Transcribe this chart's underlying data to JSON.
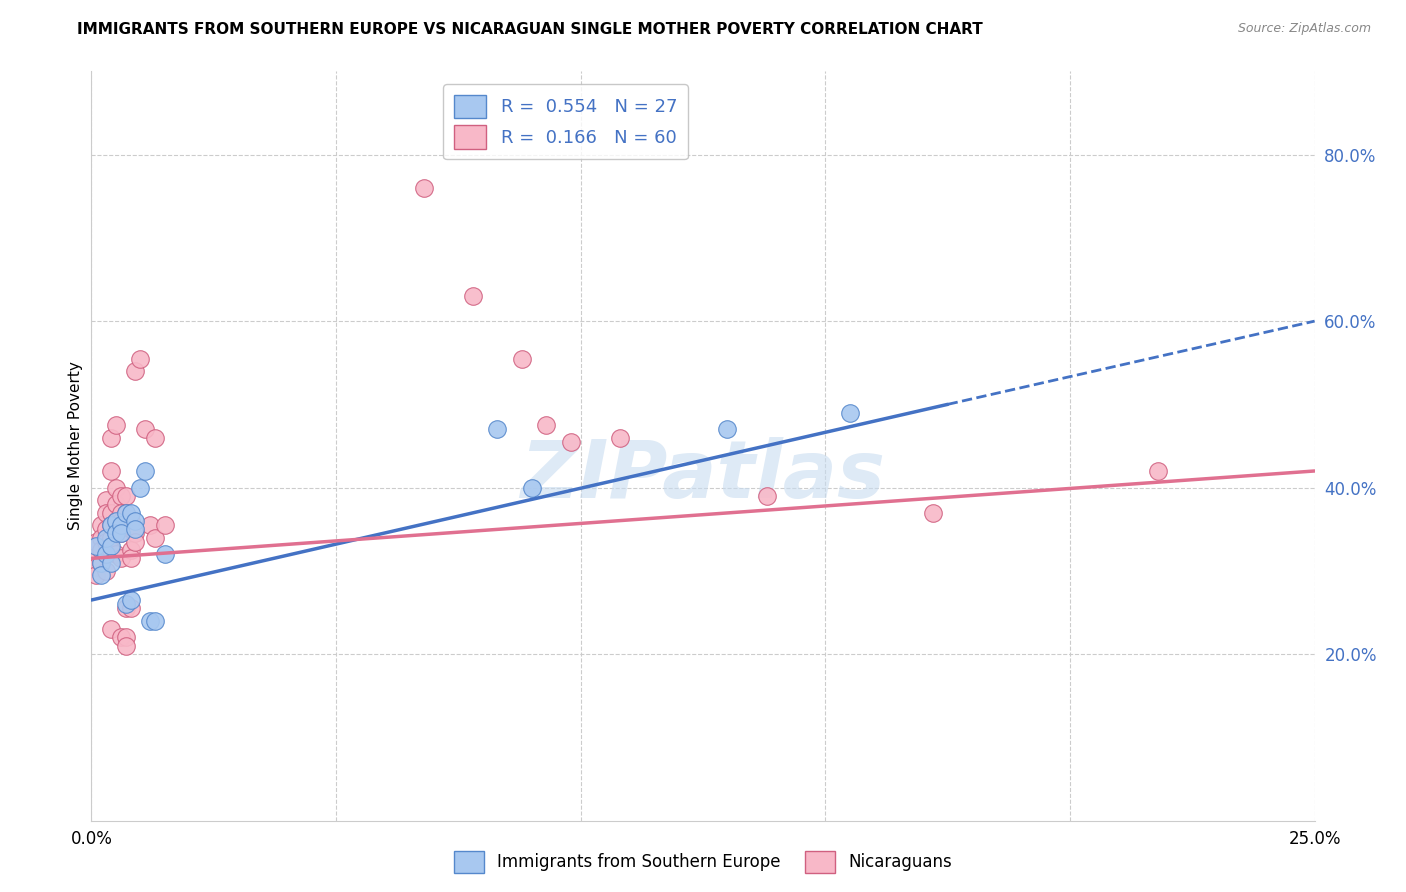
{
  "title": "IMMIGRANTS FROM SOUTHERN EUROPE VS NICARAGUAN SINGLE MOTHER POVERTY CORRELATION CHART",
  "source": "Source: ZipAtlas.com",
  "ylabel": "Single Mother Poverty",
  "legend": {
    "blue_r": "0.554",
    "blue_n": "27",
    "pink_r": "0.166",
    "pink_n": "60"
  },
  "blue_scatter": [
    [
      0.001,
      0.33
    ],
    [
      0.002,
      0.31
    ],
    [
      0.002,
      0.295
    ],
    [
      0.003,
      0.32
    ],
    [
      0.003,
      0.34
    ],
    [
      0.004,
      0.355
    ],
    [
      0.004,
      0.33
    ],
    [
      0.004,
      0.31
    ],
    [
      0.005,
      0.36
    ],
    [
      0.005,
      0.345
    ],
    [
      0.006,
      0.355
    ],
    [
      0.006,
      0.345
    ],
    [
      0.007,
      0.37
    ],
    [
      0.007,
      0.26
    ],
    [
      0.008,
      0.265
    ],
    [
      0.008,
      0.37
    ],
    [
      0.009,
      0.36
    ],
    [
      0.009,
      0.35
    ],
    [
      0.01,
      0.4
    ],
    [
      0.011,
      0.42
    ],
    [
      0.012,
      0.24
    ],
    [
      0.013,
      0.24
    ],
    [
      0.015,
      0.32
    ],
    [
      0.083,
      0.47
    ],
    [
      0.09,
      0.4
    ],
    [
      0.13,
      0.47
    ],
    [
      0.155,
      0.49
    ]
  ],
  "pink_scatter": [
    [
      0.001,
      0.32
    ],
    [
      0.001,
      0.305
    ],
    [
      0.001,
      0.335
    ],
    [
      0.001,
      0.295
    ],
    [
      0.002,
      0.355
    ],
    [
      0.002,
      0.34
    ],
    [
      0.002,
      0.325
    ],
    [
      0.002,
      0.31
    ],
    [
      0.003,
      0.385
    ],
    [
      0.003,
      0.37
    ],
    [
      0.003,
      0.35
    ],
    [
      0.003,
      0.335
    ],
    [
      0.003,
      0.3
    ],
    [
      0.004,
      0.46
    ],
    [
      0.004,
      0.42
    ],
    [
      0.004,
      0.37
    ],
    [
      0.004,
      0.355
    ],
    [
      0.004,
      0.34
    ],
    [
      0.004,
      0.325
    ],
    [
      0.004,
      0.23
    ],
    [
      0.005,
      0.475
    ],
    [
      0.005,
      0.4
    ],
    [
      0.005,
      0.38
    ],
    [
      0.005,
      0.36
    ],
    [
      0.005,
      0.345
    ],
    [
      0.005,
      0.32
    ],
    [
      0.006,
      0.39
    ],
    [
      0.006,
      0.37
    ],
    [
      0.006,
      0.36
    ],
    [
      0.006,
      0.345
    ],
    [
      0.006,
      0.315
    ],
    [
      0.006,
      0.22
    ],
    [
      0.007,
      0.39
    ],
    [
      0.007,
      0.37
    ],
    [
      0.007,
      0.255
    ],
    [
      0.007,
      0.22
    ],
    [
      0.007,
      0.21
    ],
    [
      0.008,
      0.36
    ],
    [
      0.008,
      0.35
    ],
    [
      0.008,
      0.325
    ],
    [
      0.008,
      0.315
    ],
    [
      0.008,
      0.255
    ],
    [
      0.009,
      0.54
    ],
    [
      0.009,
      0.345
    ],
    [
      0.009,
      0.335
    ],
    [
      0.01,
      0.555
    ],
    [
      0.011,
      0.47
    ],
    [
      0.012,
      0.355
    ],
    [
      0.013,
      0.46
    ],
    [
      0.013,
      0.34
    ],
    [
      0.015,
      0.355
    ],
    [
      0.068,
      0.76
    ],
    [
      0.078,
      0.63
    ],
    [
      0.088,
      0.555
    ],
    [
      0.093,
      0.475
    ],
    [
      0.098,
      0.455
    ],
    [
      0.108,
      0.46
    ],
    [
      0.138,
      0.39
    ],
    [
      0.172,
      0.37
    ],
    [
      0.218,
      0.42
    ]
  ],
  "blue_line": {
    "x0": 0.0,
    "y0": 0.265,
    "x1": 0.175,
    "y1": 0.5
  },
  "blue_dash_line": {
    "x0": 0.175,
    "y0": 0.5,
    "x1": 0.25,
    "y1": 0.6
  },
  "pink_line": {
    "x0": 0.0,
    "y0": 0.315,
    "x1": 0.25,
    "y1": 0.42
  },
  "xlim": [
    0.0,
    0.25
  ],
  "ylim": [
    0.0,
    0.9
  ],
  "yticks": [
    0.2,
    0.4,
    0.6,
    0.8
  ],
  "xtick_labels_show": [
    "0.0%",
    "25.0%"
  ],
  "blue_color": "#A8C8F0",
  "pink_color": "#F8B8C8",
  "blue_line_color": "#4472C4",
  "pink_line_color": "#E07090",
  "blue_edge_color": "#5588CC",
  "pink_edge_color": "#D06080",
  "background_color": "#FFFFFF",
  "grid_color": "#CCCCCC",
  "watermark": "ZIPatlas",
  "watermark_color": "#C8DCF0",
  "title_fontsize": 11,
  "source_fontsize": 9,
  "axis_label_color": "#4472C4",
  "legend_r_n_color": "#4472C4"
}
